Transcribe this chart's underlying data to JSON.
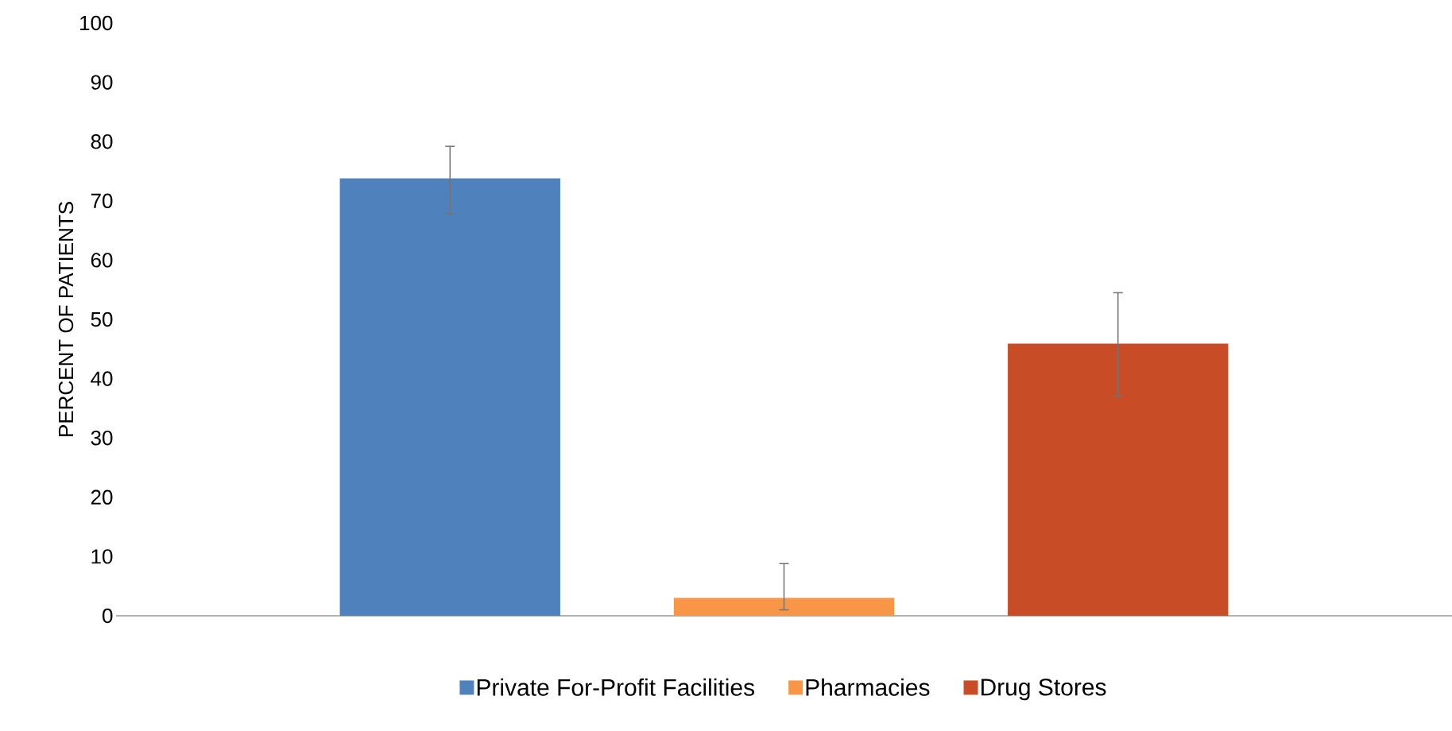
{
  "chart_data": {
    "type": "bar",
    "ylabel": "PERCENT OF PATIENTS",
    "categories": [
      null,
      null,
      null
    ],
    "series": [
      {
        "name": "Private For-Profit Facilities",
        "color": "#4f81bd",
        "values": [
          73.8,
          null,
          null
        ],
        "errors": [
          [
            67.8,
            79.2
          ],
          null,
          null
        ]
      },
      {
        "name": "Pharmacies",
        "color": "#f79646",
        "values": [
          null,
          3.0,
          null
        ],
        "errors": [
          null,
          [
            1.0,
            8.8
          ],
          null
        ]
      },
      {
        "name": "Drug Stores",
        "color": "#c84d26",
        "values": [
          null,
          null,
          45.9
        ],
        "errors": [
          null,
          null,
          [
            37.0,
            54.5
          ]
        ]
      }
    ],
    "ylim": [
      0,
      100
    ],
    "yticks": [
      0,
      10,
      20,
      30,
      40,
      50,
      60,
      70,
      80,
      90,
      100
    ],
    "legend": "bottom"
  }
}
